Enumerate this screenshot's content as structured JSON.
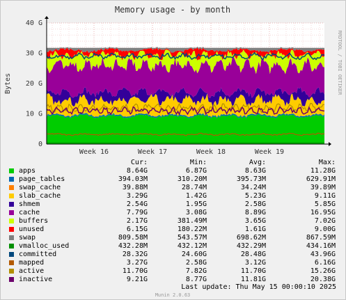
{
  "chart_data": {
    "type": "area",
    "title": "Memory usage - by month",
    "ylabel": "Bytes",
    "side_label": "RRDTOOL / TOBI OETIKER",
    "y_ticks": [
      "0",
      "10 G",
      "20 G",
      "30 G",
      "40 G"
    ],
    "ylim": [
      0,
      40
    ],
    "y_unit": "GB",
    "x_ticks": [
      "Week 16",
      "Week 17",
      "Week 18",
      "Week 19"
    ],
    "grid": true,
    "stack_order": [
      "apps",
      "page_tables",
      "swap_cache",
      "slab_cache",
      "shmem",
      "cache",
      "buffers",
      "unused",
      "swap"
    ],
    "line_series": [
      "vmalloc_used",
      "committed",
      "mapped",
      "active",
      "inactive"
    ],
    "series": [
      {
        "name": "apps",
        "color": "#00cc00",
        "cur": "8.64G",
        "min": "6.87G",
        "avg": "8.63G",
        "max": "11.28G"
      },
      {
        "name": "page_tables",
        "color": "#0066b3",
        "cur": "394.03M",
        "min": "310.20M",
        "avg": "395.73M",
        "max": "629.91M"
      },
      {
        "name": "swap_cache",
        "color": "#ff8000",
        "cur": "39.88M",
        "min": "28.74M",
        "avg": "34.24M",
        "max": "39.89M"
      },
      {
        "name": "slab_cache",
        "color": "#ffcc00",
        "cur": "3.29G",
        "min": "1.42G",
        "avg": "5.23G",
        "max": "9.11G"
      },
      {
        "name": "shmem",
        "color": "#330099",
        "cur": "2.54G",
        "min": "1.95G",
        "avg": "2.58G",
        "max": "5.85G"
      },
      {
        "name": "cache",
        "color": "#990099",
        "cur": "7.79G",
        "min": "3.08G",
        "avg": "8.89G",
        "max": "16.95G"
      },
      {
        "name": "buffers",
        "color": "#ccff00",
        "cur": "2.17G",
        "min": "381.49M",
        "avg": "3.65G",
        "max": "7.02G"
      },
      {
        "name": "unused",
        "color": "#ff0000",
        "cur": "6.15G",
        "min": "180.22M",
        "avg": "1.61G",
        "max": "9.00G"
      },
      {
        "name": "swap",
        "color": "#808080",
        "cur": "809.58M",
        "min": "543.57M",
        "avg": "698.62M",
        "max": "867.59M"
      },
      {
        "name": "vmalloc_used",
        "color": "#008f00",
        "cur": "432.28M",
        "min": "432.12M",
        "avg": "432.29M",
        "max": "434.16M"
      },
      {
        "name": "committed",
        "color": "#00487d",
        "cur": "28.32G",
        "min": "24.60G",
        "avg": "28.48G",
        "max": "43.96G"
      },
      {
        "name": "mapped",
        "color": "#b35a00",
        "cur": "3.27G",
        "min": "2.58G",
        "avg": "3.12G",
        "max": "6.16G"
      },
      {
        "name": "active",
        "color": "#b38f00",
        "cur": "11.70G",
        "min": "7.82G",
        "avg": "11.70G",
        "max": "15.26G"
      },
      {
        "name": "inactive",
        "color": "#6b006b",
        "cur": "9.21G",
        "min": "8.77G",
        "avg": "11.81G",
        "max": "20.38G"
      }
    ],
    "band_levels": {
      "apps_top": 9.2,
      "page_tables_top": 9.6,
      "slab_cache_top": 14.5,
      "shmem_top": 17.0,
      "cache_top": 26.0,
      "buffers_top": 29.5,
      "unused_top": 31.0,
      "swap_top": 31.8,
      "committed": 29.0,
      "active": 12.0,
      "inactive": 11.0,
      "mapped": 3.2,
      "vmalloc_used": 0.43
    }
  },
  "legend_header": {
    "cur": "Cur:",
    "min": "Min:",
    "avg": "Avg:",
    "max": "Max:"
  },
  "last_update": "Last update: Thu May 15 00:00:10 2025",
  "footer": "Munin 2.0.63"
}
